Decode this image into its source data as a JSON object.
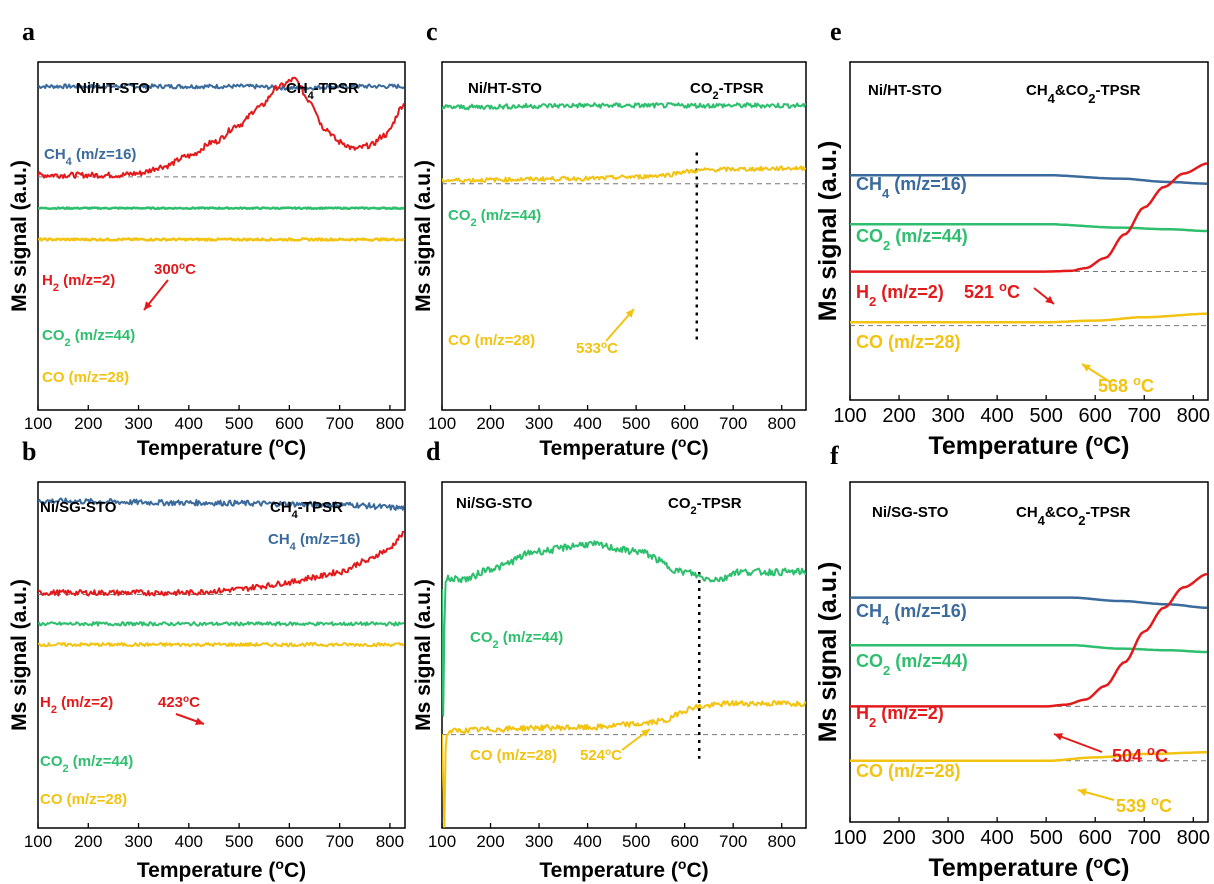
{
  "chart_data": [
    {
      "panel": "a",
      "type": "line",
      "sample": "Ni/HT-STO",
      "experiment": "CH4-TPSR",
      "experiment_parts": [
        "CH",
        "4",
        "-TPSR"
      ],
      "xlabel": "Temperature (oC)",
      "xlabel_parts": [
        "Temperature (",
        "o",
        "C)"
      ],
      "ylabel": "Ms signal (a.u.)",
      "xlim": [
        100,
        830
      ],
      "xticks": [
        "100",
        "200",
        "300",
        "400",
        "500",
        "600",
        "700",
        "800"
      ],
      "dashed_baseline": 0.67,
      "vline": null,
      "series": [
        {
          "name": "CH4 (m/z=16)",
          "label_parts": [
            "CH",
            "4",
            " (m/z=16)"
          ],
          "color": "#3a6b9c",
          "noise": 0.006,
          "x": [
            100,
            300,
            500,
            620,
            700,
            830
          ],
          "y": [
            0.93,
            0.93,
            0.93,
            0.925,
            0.93,
            0.93
          ]
        },
        {
          "name": "H2 (m/z=2)",
          "label_parts": [
            "H",
            "2",
            " (m/z=2)"
          ],
          "color": "#e31a1c",
          "noise": 0.008,
          "x": [
            100,
            260,
            300,
            350,
            400,
            450,
            500,
            540,
            580,
            610,
            640,
            670,
            700,
            730,
            760,
            790,
            830
          ],
          "y": [
            0.675,
            0.675,
            0.68,
            0.7,
            0.73,
            0.77,
            0.82,
            0.87,
            0.93,
            0.95,
            0.89,
            0.81,
            0.77,
            0.75,
            0.76,
            0.79,
            0.88
          ]
        },
        {
          "name": "CO2 (m/z=44)",
          "label_parts": [
            "CO",
            "2",
            " (m/z=44)"
          ],
          "color": "#2ebf6e",
          "noise": 0.002,
          "x": [
            100,
            830
          ],
          "y": [
            0.58,
            0.58
          ]
        },
        {
          "name": "CO (m/z=28)",
          "label_parts": [
            "CO (m/z=28)"
          ],
          "color": "#f2c311",
          "noise": 0.003,
          "x": [
            100,
            830
          ],
          "y": [
            0.49,
            0.49
          ]
        }
      ],
      "annotations": [
        {
          "text": "300",
          "sup": "o",
          "unit": "C",
          "color": "#e31a1c"
        }
      ]
    },
    {
      "panel": "b",
      "type": "line",
      "sample": "Ni/SG-STO",
      "experiment": "CH4-TPSR",
      "experiment_parts": [
        "CH",
        "4",
        "-TPSR"
      ],
      "xlabel": "Temperature (oC)",
      "xlabel_parts": [
        "Temperature (",
        "o",
        "C)"
      ],
      "ylabel": "Ms signal (a.u.)",
      "xlim": [
        100,
        830
      ],
      "xticks": [
        "100",
        "200",
        "300",
        "400",
        "500",
        "600",
        "700",
        "800"
      ],
      "dashed_baseline": 0.675,
      "vline": null,
      "series": [
        {
          "name": "CH4 (m/z=16)",
          "label_parts": [
            "CH",
            "4",
            " (m/z=16)"
          ],
          "color": "#3a6b9c",
          "noise": 0.008,
          "x": [
            100,
            400,
            700,
            830
          ],
          "y": [
            0.945,
            0.94,
            0.935,
            0.925
          ]
        },
        {
          "name": "H2 (m/z=2)",
          "label_parts": [
            "H",
            "2",
            " (m/z=2)"
          ],
          "color": "#e31a1c",
          "noise": 0.008,
          "x": [
            100,
            400,
            450,
            500,
            550,
            600,
            650,
            700,
            750,
            790,
            830
          ],
          "y": [
            0.68,
            0.68,
            0.685,
            0.69,
            0.7,
            0.71,
            0.725,
            0.74,
            0.77,
            0.8,
            0.85
          ]
        },
        {
          "name": "CO2 (m/z=44)",
          "label_parts": [
            "CO",
            "2",
            " (m/z=44)"
          ],
          "color": "#2ebf6e",
          "noise": 0.005,
          "x": [
            100,
            830
          ],
          "y": [
            0.59,
            0.59
          ]
        },
        {
          "name": "CO (m/z=28)",
          "label_parts": [
            "CO (m/z=28)"
          ],
          "color": "#f2c311",
          "noise": 0.005,
          "x": [
            100,
            830
          ],
          "y": [
            0.53,
            0.53
          ]
        }
      ],
      "annotations": [
        {
          "text": "423",
          "sup": "o",
          "unit": "C",
          "color": "#e31a1c"
        }
      ]
    },
    {
      "panel": "c",
      "type": "line",
      "sample": "Ni/HT-STO",
      "experiment": "CO2-TPSR",
      "experiment_parts": [
        "CO",
        "2",
        "-TPSR"
      ],
      "xlabel": "Temperature (oC)",
      "xlabel_parts": [
        "Temperature (",
        "o",
        "C)"
      ],
      "ylabel": "Ms signal (a.u.)",
      "xlim": [
        100,
        850
      ],
      "xticks": [
        "100",
        "200",
        "300",
        "400",
        "500",
        "600",
        "700",
        "800"
      ],
      "dashed_baseline": 0.65,
      "vline": 625,
      "series": [
        {
          "name": "CO2 (m/z=44)",
          "label_parts": [
            "CO",
            "2",
            " (m/z=44)"
          ],
          "color": "#2ebf6e",
          "noise": 0.007,
          "x": [
            100,
            400,
            600,
            850
          ],
          "y": [
            0.87,
            0.875,
            0.875,
            0.875
          ]
        },
        {
          "name": "CO (m/z=28)",
          "label_parts": [
            "CO (m/z=28)"
          ],
          "color": "#f2c311",
          "noise": 0.006,
          "x": [
            100,
            400,
            500,
            560,
            600,
            650,
            700,
            850
          ],
          "y": [
            0.66,
            0.665,
            0.67,
            0.675,
            0.685,
            0.69,
            0.692,
            0.695
          ]
        }
      ],
      "annotations": [
        {
          "text": "533",
          "sup": "o",
          "unit": "C",
          "color": "#f2c311"
        }
      ]
    },
    {
      "panel": "d",
      "type": "line",
      "sample": "Ni/SG-STO",
      "experiment": "CO2-TPSR",
      "experiment_parts": [
        "CO",
        "2",
        "-TPSR"
      ],
      "xlabel": "Temperature (oC)",
      "xlabel_parts": [
        "Temperature (",
        "o",
        "C)"
      ],
      "ylabel": "Ms signal (a.u.)",
      "xlim": [
        100,
        850
      ],
      "xticks": [
        "100",
        "200",
        "300",
        "400",
        "500",
        "600",
        "700",
        "800"
      ],
      "dashed_baseline": 0.27,
      "vline": 630,
      "series": [
        {
          "name": "CO2 (m/z=44)",
          "label_parts": [
            "CO",
            "2",
            " (m/z=44)"
          ],
          "color": "#2ebf6e",
          "noise": 0.01,
          "x": [
            100,
            103,
            106,
            110,
            150,
            200,
            300,
            400,
            500,
            600,
            650,
            680,
            700,
            850
          ],
          "y": [
            0.7,
            0.3,
            0.7,
            0.72,
            0.72,
            0.75,
            0.8,
            0.82,
            0.8,
            0.74,
            0.72,
            0.72,
            0.74,
            0.74
          ]
        },
        {
          "name": "CO (m/z=28)",
          "label_parts": [
            "CO (m/z=28)"
          ],
          "color": "#f2c311",
          "noise": 0.008,
          "x": [
            100,
            105,
            108,
            115,
            200,
            300,
            400,
            500,
            560,
            600,
            620,
            700,
            850
          ],
          "y": [
            0.27,
            0.0,
            0.26,
            0.28,
            0.285,
            0.29,
            0.29,
            0.3,
            0.31,
            0.34,
            0.35,
            0.36,
            0.36
          ]
        }
      ],
      "annotations": [
        {
          "text": "524",
          "sup": "o",
          "unit": "C",
          "color": "#f2c311"
        }
      ]
    },
    {
      "panel": "e",
      "type": "line",
      "sample": "Ni/HT-STO",
      "experiment": "CH4&CO2-TPSR",
      "experiment_parts": [
        "CH",
        "4",
        "&CO",
        "2",
        "-TPSR"
      ],
      "xlabel": "Temperature (oC)",
      "xlabel_parts": [
        "Temperature (",
        "o",
        "C)"
      ],
      "ylabel": "Ms signal (a.u.)",
      "xlim": [
        100,
        830
      ],
      "xticks": [
        "100",
        "200",
        "300",
        "400",
        "500",
        "600",
        "700",
        "800"
      ],
      "dashed_baseline": 0.38,
      "second_dashed": 0.22,
      "vline": null,
      "series": [
        {
          "name": "CH4 (m/z=16)",
          "label_parts": [
            "CH",
            "4",
            " (m/z=16)"
          ],
          "color": "#3a6b9c",
          "noise": 0,
          "x": [
            100,
            500,
            650,
            750,
            830
          ],
          "y": [
            0.665,
            0.665,
            0.655,
            0.645,
            0.64
          ]
        },
        {
          "name": "CO2 (m/z=44)",
          "label_parts": [
            "CO",
            "2",
            " (m/z=44)"
          ],
          "color": "#2ebf6e",
          "noise": 0,
          "x": [
            100,
            500,
            650,
            750,
            830
          ],
          "y": [
            0.52,
            0.52,
            0.51,
            0.505,
            0.5
          ]
        },
        {
          "name": "H2 (m/z=2)",
          "label_parts": [
            "H",
            "2",
            " (m/z=2)"
          ],
          "color": "#e31a1c",
          "noise": 0,
          "x": [
            100,
            500,
            550,
            580,
            620,
            660,
            700,
            740,
            780,
            830
          ],
          "y": [
            0.38,
            0.38,
            0.382,
            0.39,
            0.42,
            0.49,
            0.57,
            0.63,
            0.67,
            0.7
          ]
        },
        {
          "name": "CO (m/z=28)",
          "label_parts": [
            "CO (m/z=28)"
          ],
          "color": "#f2c311",
          "noise": 0,
          "x": [
            100,
            500,
            600,
            700,
            830
          ],
          "y": [
            0.23,
            0.23,
            0.235,
            0.245,
            0.255
          ]
        }
      ],
      "annotations": [
        {
          "text": "521 ",
          "sup": "o",
          "unit": "C",
          "color": "#e31a1c"
        },
        {
          "text": "568 ",
          "sup": "o",
          "unit": "C",
          "color": "#f2c311"
        }
      ]
    },
    {
      "panel": "f",
      "type": "line",
      "sample": "Ni/SG-STO",
      "experiment": "CH4&CO2-TPSR",
      "experiment_parts": [
        "CH",
        "4",
        "&CO",
        "2",
        "-TPSR"
      ],
      "xlabel": "Temperature (oC)",
      "xlabel_parts": [
        "Temperature (",
        "o",
        "C)"
      ],
      "ylabel": "Ms signal (a.u.)",
      "xlim": [
        100,
        830
      ],
      "xticks": [
        "100",
        "200",
        "300",
        "400",
        "500",
        "600",
        "700",
        "800"
      ],
      "dashed_baseline": 0.34,
      "second_dashed": 0.18,
      "vline": null,
      "series": [
        {
          "name": "CH4 (m/z=16)",
          "label_parts": [
            "CH",
            "4",
            " (m/z=16)"
          ],
          "color": "#3a6b9c",
          "noise": 0,
          "x": [
            100,
            550,
            650,
            750,
            830
          ],
          "y": [
            0.66,
            0.66,
            0.65,
            0.64,
            0.63
          ]
        },
        {
          "name": "CO2 (m/z=44)",
          "label_parts": [
            "CO",
            "2",
            " (m/z=44)"
          ],
          "color": "#2ebf6e",
          "noise": 0,
          "x": [
            100,
            550,
            650,
            750,
            830
          ],
          "y": [
            0.52,
            0.52,
            0.51,
            0.505,
            0.5
          ]
        },
        {
          "name": "H2 (m/z=2)",
          "label_parts": [
            "H",
            "2",
            " (m/z=2)"
          ],
          "color": "#e31a1c",
          "noise": 0,
          "x": [
            100,
            500,
            540,
            580,
            620,
            660,
            700,
            740,
            780,
            830
          ],
          "y": [
            0.34,
            0.34,
            0.345,
            0.36,
            0.4,
            0.47,
            0.56,
            0.63,
            0.69,
            0.73
          ]
        },
        {
          "name": "CO (m/z=28)",
          "label_parts": [
            "CO (m/z=28)"
          ],
          "color": "#f2c311",
          "noise": 0,
          "x": [
            100,
            500,
            600,
            700,
            830
          ],
          "y": [
            0.18,
            0.18,
            0.19,
            0.2,
            0.205
          ]
        }
      ],
      "annotations": [
        {
          "text": "504 ",
          "sup": "o",
          "unit": "C",
          "color": "#e31a1c"
        },
        {
          "text": "539 ",
          "sup": "o",
          "unit": "C",
          "color": "#f2c311"
        }
      ]
    }
  ]
}
